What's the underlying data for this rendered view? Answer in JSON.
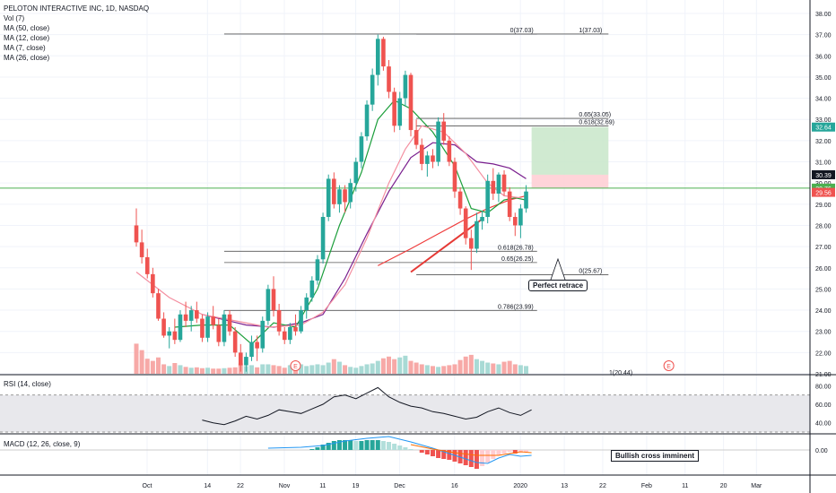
{
  "legend": {
    "title": "PELOTON INTERACTIVE INC, 1D, NASDAQ",
    "studies": [
      "Vol (7)",
      "MA (50, close)",
      "MA (12, close)",
      "MA (7, close)",
      "MA (26, close)"
    ]
  },
  "rsi_label": "RSI (14, close)",
  "macd_label": "MACD (12, 26, close, 9)",
  "annotations": {
    "perfect_retrace": "Perfect retrace",
    "bullish_cross": "Bullish cross imminent"
  },
  "earnings_marker": "E",
  "chart_data": {
    "type": "candlestick",
    "colors": {
      "up": "#26a69a",
      "down": "#ef5350",
      "vol_up": "#a8dad5",
      "vol_down": "#f7a9a7",
      "ma50": "#ef3c3c",
      "ma12": "#7a1f8e",
      "ma7": "#1b9e3a",
      "ma26": "#f48fa0",
      "price_line": "#4caf50"
    },
    "price_axis": {
      "min": 21,
      "max": 38,
      "ticks": [
        "38.00",
        "37.00",
        "36.00",
        "35.00",
        "34.00",
        "33.00",
        "32.00",
        "31.00",
        "30.00",
        "29.00",
        "28.00",
        "27.00",
        "26.00",
        "25.00",
        "24.00",
        "23.00",
        "22.00",
        "21.00"
      ]
    },
    "price_badges": [
      {
        "value": 32.64,
        "label": "32.64",
        "color": "#26a69a"
      },
      {
        "value": 30.39,
        "label": "30.39",
        "color": "#131722"
      },
      {
        "value": 29.76,
        "label": "29.76",
        "color": "#4caf50"
      },
      {
        "value": 29.56,
        "label": "29.56",
        "color": "#ef5350"
      }
    ],
    "x_axis_labels": [
      {
        "label": "Oct",
        "t": 0
      },
      {
        "label": "14",
        "t": 11
      },
      {
        "label": "22",
        "t": 17
      },
      {
        "label": "Nov",
        "t": 25
      },
      {
        "label": "11",
        "t": 32
      },
      {
        "label": "19",
        "t": 38
      },
      {
        "label": "Dec",
        "t": 46
      },
      {
        "label": "16",
        "t": 56
      },
      {
        "label": "2020",
        "t": 68
      },
      {
        "label": "13",
        "t": 76
      },
      {
        "label": "22",
        "t": 83
      },
      {
        "label": "Feb",
        "t": 91
      },
      {
        "label": "11",
        "t": 98
      },
      {
        "label": "20",
        "t": 105
      },
      {
        "label": "Mar",
        "t": 111
      }
    ],
    "candles": [
      [
        28.0,
        28.8,
        27.0,
        27.2
      ],
      [
        27.2,
        27.8,
        26.2,
        26.5
      ],
      [
        26.5,
        26.9,
        25.5,
        25.7
      ],
      [
        25.7,
        26.0,
        24.6,
        24.8
      ],
      [
        24.8,
        25.0,
        23.5,
        23.6
      ],
      [
        23.6,
        23.9,
        22.7,
        22.8
      ],
      [
        22.8,
        23.2,
        22.2,
        23.0
      ],
      [
        23.0,
        23.6,
        22.4,
        22.6
      ],
      [
        22.6,
        24.0,
        22.5,
        23.8
      ],
      [
        23.8,
        24.4,
        23.2,
        23.5
      ],
      [
        23.5,
        24.2,
        23.0,
        24.0
      ],
      [
        24.0,
        24.4,
        23.4,
        23.6
      ],
      [
        23.6,
        23.8,
        22.5,
        22.7
      ],
      [
        22.7,
        23.9,
        22.5,
        23.7
      ],
      [
        23.7,
        24.2,
        23.1,
        23.3
      ],
      [
        23.3,
        23.6,
        22.3,
        22.5
      ],
      [
        22.5,
        24.0,
        22.3,
        23.8
      ],
      [
        23.8,
        24.0,
        22.8,
        23.0
      ],
      [
        23.0,
        23.2,
        21.8,
        22.0
      ],
      [
        22.0,
        22.4,
        21.1,
        21.4
      ],
      [
        21.4,
        22.0,
        21.1,
        21.8
      ],
      [
        21.8,
        22.8,
        21.6,
        22.5
      ],
      [
        22.5,
        22.8,
        21.6,
        22.2
      ],
      [
        22.2,
        23.7,
        22.0,
        23.5
      ],
      [
        23.5,
        25.2,
        23.3,
        25.0
      ],
      [
        25.0,
        25.6,
        23.7,
        24.0
      ],
      [
        24.0,
        24.3,
        22.8,
        23.0
      ],
      [
        23.0,
        23.2,
        22.4,
        22.6
      ],
      [
        22.6,
        23.4,
        22.4,
        23.2
      ],
      [
        23.2,
        23.8,
        22.8,
        23.0
      ],
      [
        23.0,
        24.2,
        22.9,
        24.0
      ],
      [
        24.0,
        24.8,
        23.6,
        24.6
      ],
      [
        24.6,
        25.6,
        24.4,
        25.4
      ],
      [
        25.4,
        26.6,
        25.2,
        26.4
      ],
      [
        26.4,
        28.6,
        26.2,
        28.4
      ],
      [
        28.4,
        30.4,
        28.2,
        30.2
      ],
      [
        30.2,
        30.5,
        28.8,
        29.0
      ],
      [
        29.0,
        29.9,
        28.6,
        29.7
      ],
      [
        29.7,
        29.9,
        28.6,
        29.1
      ],
      [
        29.1,
        30.2,
        28.8,
        30.0
      ],
      [
        30.0,
        31.2,
        29.6,
        31.0
      ],
      [
        31.0,
        32.4,
        30.7,
        32.2
      ],
      [
        32.2,
        33.9,
        32.0,
        33.7
      ],
      [
        33.7,
        35.4,
        33.4,
        35.1
      ],
      [
        35.1,
        37.0,
        34.6,
        36.8
      ],
      [
        36.8,
        36.9,
        35.3,
        35.5
      ],
      [
        35.5,
        35.8,
        34.0,
        34.3
      ],
      [
        34.3,
        34.5,
        32.4,
        32.7
      ],
      [
        32.7,
        34.3,
        32.5,
        34.0
      ],
      [
        34.0,
        35.3,
        33.6,
        35.1
      ],
      [
        35.1,
        35.2,
        32.2,
        32.5
      ],
      [
        32.5,
        33.0,
        31.6,
        31.8
      ],
      [
        31.8,
        32.1,
        30.6,
        30.9
      ],
      [
        30.9,
        31.5,
        30.3,
        31.3
      ],
      [
        31.3,
        31.6,
        30.7,
        31.0
      ],
      [
        31.0,
        33.1,
        30.8,
        32.9
      ],
      [
        32.9,
        33.3,
        31.8,
        32.0
      ],
      [
        32.0,
        32.2,
        30.8,
        31.0
      ],
      [
        31.0,
        31.2,
        29.3,
        29.6
      ],
      [
        29.6,
        29.8,
        28.5,
        28.8
      ],
      [
        28.8,
        28.9,
        27.1,
        27.4
      ],
      [
        27.4,
        27.8,
        25.9,
        26.9
      ],
      [
        26.9,
        28.6,
        26.7,
        28.2
      ],
      [
        28.2,
        28.7,
        27.8,
        28.4
      ],
      [
        28.4,
        30.4,
        28.1,
        30.1
      ],
      [
        30.1,
        30.7,
        29.2,
        29.5
      ],
      [
        29.5,
        30.5,
        29.1,
        30.4
      ],
      [
        30.4,
        30.6,
        29.4,
        29.6
      ],
      [
        29.6,
        29.8,
        28.2,
        28.4
      ],
      [
        28.4,
        28.6,
        27.5,
        28.0
      ],
      [
        28.0,
        29.0,
        27.4,
        28.8
      ],
      [
        28.8,
        29.9,
        28.6,
        29.6
      ]
    ],
    "volume_range": [
      0,
      100
    ],
    "volume": [
      70,
      55,
      35,
      30,
      38,
      22,
      18,
      25,
      20,
      16,
      14,
      15,
      13,
      14,
      12,
      12,
      13,
      14,
      15,
      24,
      18,
      20,
      15,
      22,
      22,
      20,
      18,
      14,
      20,
      16,
      22,
      18,
      20,
      22,
      20,
      26,
      34,
      28,
      20,
      16,
      14,
      18,
      22,
      24,
      30,
      36,
      40,
      34,
      38,
      42,
      30,
      26,
      22,
      20,
      18,
      16,
      18,
      20,
      22,
      32,
      40,
      44,
      34,
      30,
      26,
      24,
      22,
      28,
      30,
      22,
      20,
      18
    ],
    "ma_series": [
      {
        "name": "MA (50, close)",
        "color": "#ef3c3c",
        "points": [
          [
            44,
            26.1
          ],
          [
            50,
            26.9
          ],
          [
            55,
            27.6
          ],
          [
            60,
            28.3
          ],
          [
            64,
            28.8
          ],
          [
            68,
            29.2
          ],
          [
            71,
            29.4
          ]
        ]
      },
      {
        "name": "MA (12, close)",
        "color": "#7a1f8e",
        "points": [
          [
            12,
            23.8
          ],
          [
            20,
            23.3
          ],
          [
            25,
            23.2
          ],
          [
            30,
            23.4
          ],
          [
            34,
            23.8
          ],
          [
            38,
            25.5
          ],
          [
            42,
            27.6
          ],
          [
            46,
            29.6
          ],
          [
            50,
            31.2
          ],
          [
            54,
            31.9
          ],
          [
            58,
            31.8
          ],
          [
            62,
            31.0
          ],
          [
            65,
            30.9
          ],
          [
            68,
            30.7
          ],
          [
            71,
            30.2
          ]
        ]
      },
      {
        "name": "MA (7, close)",
        "color": "#1b9e3a",
        "points": [
          [
            7,
            23.2
          ],
          [
            12,
            23.3
          ],
          [
            17,
            23.3
          ],
          [
            21,
            22.4
          ],
          [
            25,
            23.4
          ],
          [
            29,
            23.2
          ],
          [
            33,
            25.0
          ],
          [
            37,
            28.0
          ],
          [
            41,
            30.5
          ],
          [
            44,
            33.0
          ],
          [
            47,
            33.9
          ],
          [
            50,
            33.5
          ],
          [
            54,
            32.4
          ],
          [
            58,
            30.8
          ],
          [
            61,
            28.8
          ],
          [
            64,
            28.6
          ],
          [
            67,
            29.2
          ],
          [
            69,
            29.3
          ],
          [
            71,
            29.2
          ]
        ]
      },
      {
        "name": "MA (26, close)",
        "color": "#f48fa0",
        "points": [
          [
            0,
            25.8
          ],
          [
            6,
            24.6
          ],
          [
            12,
            23.8
          ],
          [
            18,
            23.5
          ],
          [
            24,
            23.2
          ],
          [
            30,
            23.3
          ],
          [
            34,
            23.9
          ],
          [
            38,
            25.2
          ],
          [
            42,
            27.4
          ],
          [
            46,
            30.0
          ],
          [
            49,
            31.6
          ],
          [
            52,
            32.7
          ],
          [
            56,
            32.4
          ],
          [
            60,
            31.4
          ],
          [
            64,
            30.0
          ],
          [
            67,
            29.4
          ],
          [
            70,
            29.3
          ]
        ]
      }
    ],
    "fib_levels": [
      {
        "label": "0(37.03)",
        "value": 37.03,
        "t_start": 16,
        "t_end": 73
      },
      {
        "label": "1(37.03)",
        "value": 37.03,
        "t_start": 51,
        "t_end": 86
      },
      {
        "label": "0.65(33.05)",
        "value": 33.05,
        "t_start": 51,
        "t_end": 86
      },
      {
        "label": "0.618(32.69)",
        "value": 32.69,
        "t_start": 51,
        "t_end": 86
      },
      {
        "label": "0.618(26.78)",
        "value": 26.78,
        "t_start": 16,
        "t_end": 73
      },
      {
        "label": "0.65(26.25)",
        "value": 26.25,
        "t_start": 16,
        "t_end": 73
      },
      {
        "label": "0(25.67)",
        "value": 25.67,
        "t_start": 51,
        "t_end": 86
      },
      {
        "label": "0.786(23.99)",
        "value": 23.99,
        "t_start": 16,
        "t_end": 73
      }
    ],
    "fib_offscreen_label": "1(20.44)",
    "position": {
      "t_start": 72,
      "t_end": 86,
      "entry": 29.76,
      "stop": 30.39,
      "target": 32.64
    },
    "current_price": 29.76,
    "trend_line": [
      [
        50,
        25.8
      ],
      [
        63,
        28.3
      ]
    ],
    "earnings_t": [
      29,
      97
    ],
    "rsi": {
      "range": [
        30,
        90
      ],
      "band": [
        30,
        70
      ],
      "ticks": [
        "80.00",
        "60.00",
        "40.00"
      ],
      "values": [
        [
          12,
          43
        ],
        [
          14,
          40
        ],
        [
          16,
          38
        ],
        [
          18,
          42
        ],
        [
          20,
          47
        ],
        [
          22,
          44
        ],
        [
          24,
          48
        ],
        [
          26,
          54
        ],
        [
          28,
          52
        ],
        [
          30,
          50
        ],
        [
          32,
          55
        ],
        [
          34,
          60
        ],
        [
          36,
          68
        ],
        [
          38,
          70
        ],
        [
          40,
          66
        ],
        [
          42,
          72
        ],
        [
          44,
          78
        ],
        [
          46,
          68
        ],
        [
          48,
          62
        ],
        [
          50,
          58
        ],
        [
          52,
          56
        ],
        [
          54,
          52
        ],
        [
          56,
          50
        ],
        [
          58,
          47
        ],
        [
          60,
          44
        ],
        [
          62,
          46
        ],
        [
          64,
          52
        ],
        [
          66,
          56
        ],
        [
          68,
          51
        ],
        [
          70,
          48
        ],
        [
          72,
          54
        ]
      ]
    },
    "macd": {
      "range": [
        -2.6,
        1.6
      ],
      "ticks": [
        "0.00"
      ],
      "histogram": [
        0,
        0,
        0,
        0,
        0,
        0,
        0,
        0,
        0,
        0,
        0,
        0,
        0,
        0,
        0,
        0,
        0,
        0,
        0,
        0,
        0,
        0,
        0,
        0,
        0,
        0,
        0,
        0,
        0,
        0,
        0,
        0,
        0.1,
        0.3,
        0.6,
        0.8,
        1.0,
        1.1,
        1.1,
        1.1,
        1.0,
        1.0,
        1.1,
        1.1,
        1.1,
        1.0,
        0.9,
        0.7,
        0.5,
        0.3,
        0.1,
        0,
        -0.3,
        -0.5,
        -0.7,
        -0.9,
        -1.0,
        -1.1,
        -1.3,
        -1.5,
        -1.7,
        -1.9,
        -2.1,
        -1.8,
        -1.4,
        -1.0,
        -0.6,
        -0.4,
        -0.2,
        -0.4,
        -0.3,
        -0.2
      ],
      "macd_line": [
        [
          24,
          0.2
        ],
        [
          30,
          0.3
        ],
        [
          34,
          0.5
        ],
        [
          38,
          1.0
        ],
        [
          42,
          1.3
        ],
        [
          46,
          1.5
        ],
        [
          50,
          0.9
        ],
        [
          54,
          0.2
        ],
        [
          58,
          -0.6
        ],
        [
          62,
          -1.4
        ],
        [
          64,
          -1.5
        ],
        [
          66,
          -0.9
        ],
        [
          68,
          -0.5
        ],
        [
          70,
          -0.7
        ],
        [
          72,
          -0.6
        ]
      ],
      "signal_line": [
        [
          50,
          0.6
        ],
        [
          54,
          0.1
        ],
        [
          58,
          -0.3
        ],
        [
          62,
          -0.6
        ],
        [
          66,
          -0.6
        ],
        [
          68,
          -0.4
        ],
        [
          70,
          -0.2
        ],
        [
          72,
          -0.3
        ]
      ]
    }
  }
}
